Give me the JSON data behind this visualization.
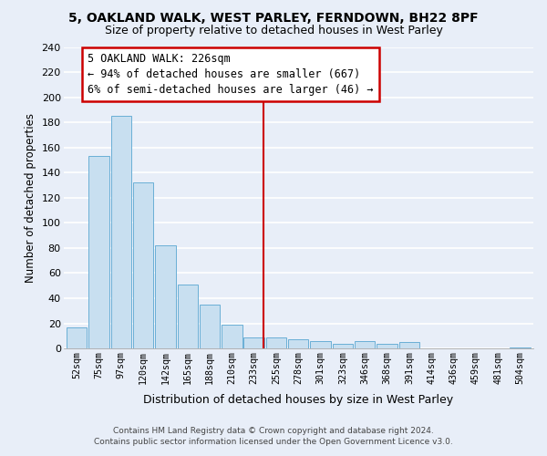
{
  "title1": "5, OAKLAND WALK, WEST PARLEY, FERNDOWN, BH22 8PF",
  "title2": "Size of property relative to detached houses in West Parley",
  "xlabel": "Distribution of detached houses by size in West Parley",
  "ylabel": "Number of detached properties",
  "bar_labels": [
    "52sqm",
    "75sqm",
    "97sqm",
    "120sqm",
    "142sqm",
    "165sqm",
    "188sqm",
    "210sqm",
    "233sqm",
    "255sqm",
    "278sqm",
    "301sqm",
    "323sqm",
    "346sqm",
    "368sqm",
    "391sqm",
    "414sqm",
    "436sqm",
    "459sqm",
    "481sqm",
    "504sqm"
  ],
  "bar_values": [
    17,
    153,
    185,
    132,
    82,
    51,
    35,
    19,
    9,
    9,
    7,
    6,
    4,
    6,
    4,
    5,
    0,
    0,
    0,
    0,
    1
  ],
  "bar_color": "#c8dff0",
  "bar_edge_color": "#6aafd6",
  "vline_color": "#cc0000",
  "ylim": [
    0,
    240
  ],
  "yticks": [
    0,
    20,
    40,
    60,
    80,
    100,
    120,
    140,
    160,
    180,
    200,
    220,
    240
  ],
  "annotation_title": "5 OAKLAND WALK: 226sqm",
  "annotation_line1": "← 94% of detached houses are smaller (667)",
  "annotation_line2": "6% of semi-detached houses are larger (46) →",
  "annotation_box_color": "white",
  "annotation_box_edge": "#cc0000",
  "footer1": "Contains HM Land Registry data © Crown copyright and database right 2024.",
  "footer2": "Contains public sector information licensed under the Open Government Licence v3.0.",
  "bg_color": "#e8eef8",
  "grid_color": "#d0d8e8",
  "vline_bar_index": 8.42
}
